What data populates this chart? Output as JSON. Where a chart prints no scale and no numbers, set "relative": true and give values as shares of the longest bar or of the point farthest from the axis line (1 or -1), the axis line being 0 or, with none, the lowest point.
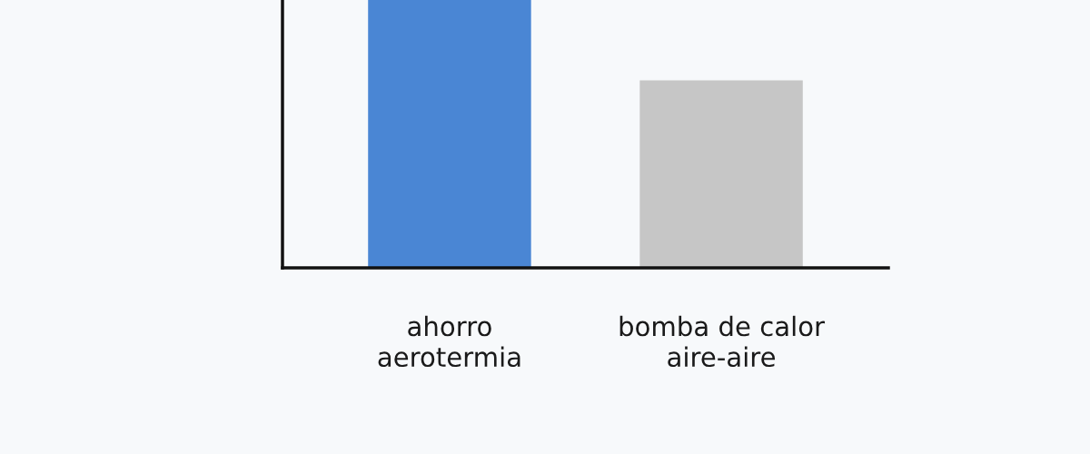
{
  "chart_data": {
    "type": "bar",
    "relative": true,
    "categories": [
      "ahorro\naerotermia",
      "bomba de calor\naire-aire"
    ],
    "values": [
      1,
      0.7
    ],
    "colors": [
      "#4a86d4",
      "#c6c6c6"
    ],
    "grid": false,
    "legend": false
  }
}
